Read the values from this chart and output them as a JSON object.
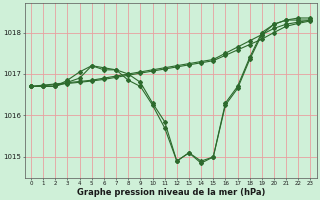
{
  "title": "Graphe pression niveau de la mer (hPa)",
  "bg_color": "#cff0d8",
  "line_color": "#2d6a2d",
  "grid_color": "#e8a0a0",
  "x_ticks": [
    0,
    1,
    2,
    3,
    4,
    5,
    6,
    7,
    8,
    9,
    10,
    11,
    12,
    13,
    14,
    15,
    16,
    17,
    18,
    19,
    20,
    21,
    22,
    23
  ],
  "ylim": [
    1014.5,
    1018.7
  ],
  "yticks": [
    1015,
    1016,
    1017,
    1018
  ],
  "lines": [
    [
      1016.7,
      1016.7,
      1016.7,
      1016.8,
      1016.9,
      1017.2,
      1017.1,
      1017.1,
      1017.0,
      1016.8,
      1016.3,
      1015.85,
      1014.9,
      1015.1,
      1014.9,
      1015.0,
      1016.3,
      1016.7,
      1017.4,
      1018.0,
      1018.2,
      1018.3,
      1018.35,
      1018.35
    ],
    [
      1016.7,
      1016.73,
      1016.76,
      1016.79,
      1016.82,
      1016.85,
      1016.9,
      1016.95,
      1017.0,
      1017.05,
      1017.1,
      1017.15,
      1017.2,
      1017.25,
      1017.3,
      1017.35,
      1017.5,
      1017.65,
      1017.8,
      1017.95,
      1018.1,
      1018.2,
      1018.25,
      1018.3
    ],
    [
      1016.7,
      1016.72,
      1016.74,
      1016.77,
      1016.8,
      1016.83,
      1016.87,
      1016.92,
      1016.97,
      1017.02,
      1017.07,
      1017.12,
      1017.17,
      1017.22,
      1017.27,
      1017.32,
      1017.45,
      1017.58,
      1017.71,
      1017.84,
      1018.0,
      1018.15,
      1018.22,
      1018.28
    ],
    [
      1016.7,
      1016.7,
      1016.7,
      1016.85,
      1017.05,
      1017.2,
      1017.15,
      1017.1,
      1016.85,
      1016.7,
      1016.25,
      1015.7,
      1014.9,
      1015.1,
      1014.85,
      1015.0,
      1016.25,
      1016.65,
      1017.35,
      1017.95,
      1018.2,
      1018.3,
      1018.3,
      1018.3
    ]
  ]
}
